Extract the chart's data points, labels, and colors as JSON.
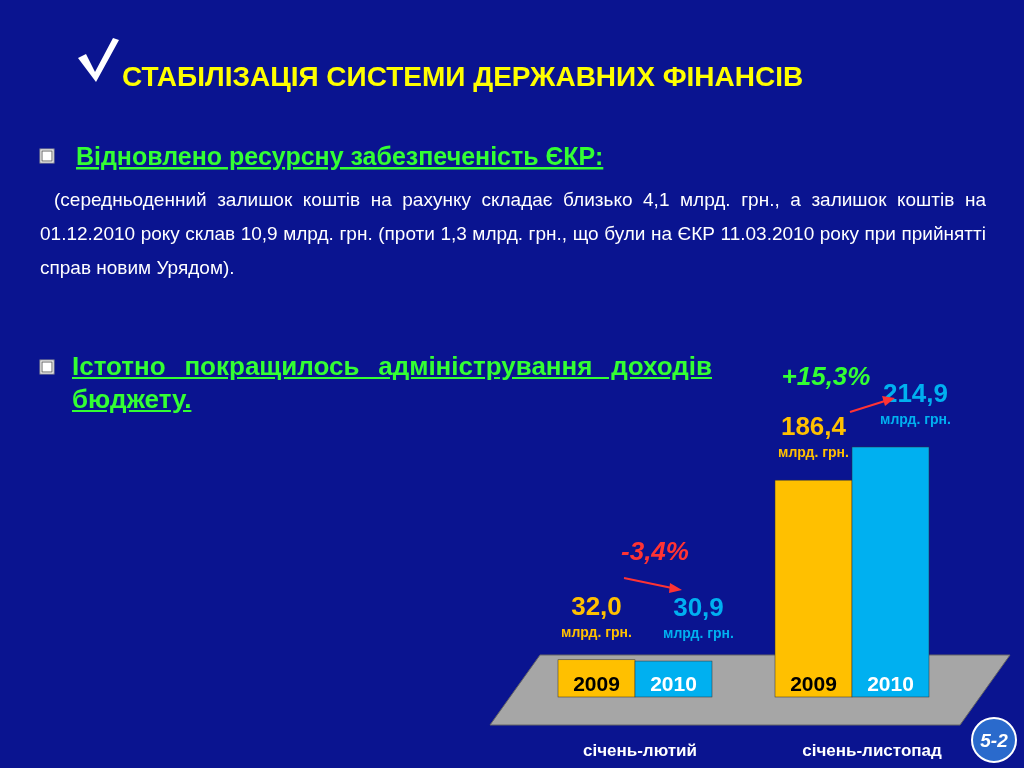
{
  "chart_data": {
    "type": "bar",
    "title": "СТАБІЛІЗАЦІЯ СИСТЕМИ ДЕРЖАВНИХ ФІНАНСІВ",
    "categories": [
      "січень-лютий",
      "січень-листопад"
    ],
    "series": [
      {
        "name": "2009",
        "color": "#ffc000",
        "values": [
          32.0,
          186.4
        ],
        "value_labels": [
          "32,0 млрд. грн.",
          "186,4 млрд. грн."
        ]
      },
      {
        "name": "2010",
        "color": "#00b0f0",
        "values": [
          30.9,
          214.9
        ],
        "value_labels": [
          "30,9 млрд. грн.",
          "214,9 млрд. грн."
        ]
      }
    ],
    "annotations": [
      "Відновлено ресурсну забезпеченість ЄКР:",
      "(середньоденний залишок коштів на рахунку складає близько 4,1 млрд. грн., а залишок коштів на 01.12.2010 року склав 10,9 млрд. грн. (проти 1,3 млрд. грн., що були на ЄКР 11.03.2010 року при прийнятті справ новим Урядом).",
      "Істотно покращилось адміністрування доходів бюджету.",
      "-3,4%",
      "+15,3%",
      "5-2"
    ]
  }
}
